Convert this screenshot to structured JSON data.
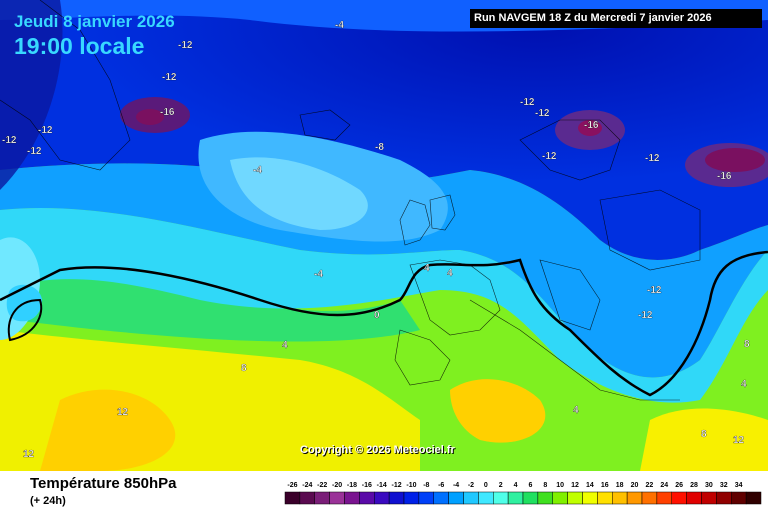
{
  "header": {
    "date": "Jeudi 8 janvier 2026",
    "time": "19:00 locale",
    "run": "Run NAVGEM 18 Z du Mercredi 7 janvier 2026"
  },
  "copyright": "Copyright © 2026 Meteociel.fr",
  "footer": {
    "title": "Température 850hPa",
    "subtitle": "(+ 24h)"
  },
  "legend": {
    "ticks": [
      "-26",
      "-24",
      "-22",
      "-20",
      "-18",
      "-16",
      "-14",
      "-12",
      "-10",
      "-8",
      "-6",
      "-4",
      "-2",
      "0",
      "2",
      "4",
      "6",
      "8",
      "10",
      "12",
      "14",
      "16",
      "18",
      "20",
      "22",
      "24",
      "26",
      "28",
      "30",
      "32",
      "34"
    ],
    "colors": [
      "#3a002a",
      "#5a0a50",
      "#7a1e78",
      "#9a3298",
      "#7a1490",
      "#5a0aa8",
      "#3a0ac0",
      "#1010d0",
      "#0020e8",
      "#0040f8",
      "#0070ff",
      "#00a0ff",
      "#20c8ff",
      "#40e8ff",
      "#50ffe8",
      "#30f0a0",
      "#20e060",
      "#40e020",
      "#80f000",
      "#c0ff00",
      "#f0ff00",
      "#ffe000",
      "#ffc000",
      "#ff9800",
      "#ff7000",
      "#ff4000",
      "#ff1000",
      "#e00000",
      "#c00000",
      "#900000",
      "#600000",
      "#300000"
    ]
  },
  "contour_labels": [
    {
      "text": "-4"
    },
    {
      "text": "-12"
    },
    {
      "text": "-12"
    },
    {
      "text": "-16"
    },
    {
      "text": "-12"
    },
    {
      "text": "-12"
    },
    {
      "text": "-12"
    },
    {
      "text": "-8"
    },
    {
      "text": "-12"
    },
    {
      "text": "-12"
    },
    {
      "text": "-16"
    },
    {
      "text": "-12"
    },
    {
      "text": "-12"
    },
    {
      "text": "-16"
    },
    {
      "text": "-4"
    },
    {
      "text": "-4"
    },
    {
      "text": "0"
    },
    {
      "text": "4"
    },
    {
      "text": "4"
    },
    {
      "text": "-12"
    },
    {
      "text": "-12"
    },
    {
      "text": "4"
    },
    {
      "text": "8"
    },
    {
      "text": "12"
    },
    {
      "text": "12"
    },
    {
      "text": "4"
    },
    {
      "text": "8"
    },
    {
      "text": "12"
    },
    {
      "text": "8"
    },
    {
      "text": "4"
    }
  ]
}
